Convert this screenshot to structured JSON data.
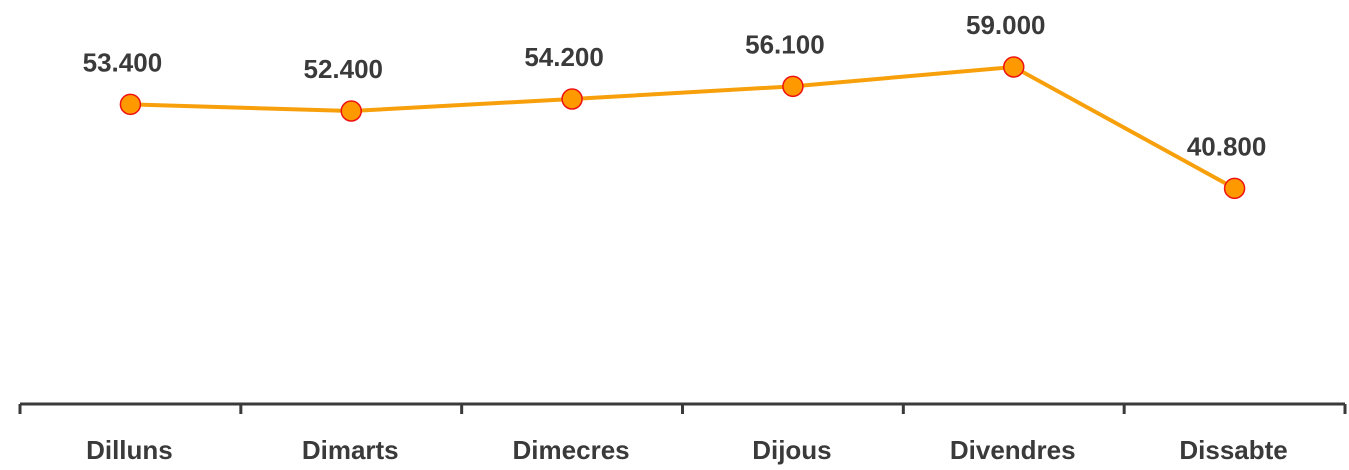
{
  "chart_data": {
    "type": "line",
    "categories": [
      "Dilluns",
      "Dimarts",
      "Dimecres",
      "Dijous",
      "Divendres",
      "Dissabte"
    ],
    "series": [
      {
        "values": [
          53400,
          52400,
          54200,
          56100,
          59000,
          40800
        ],
        "labels": [
          "53.400",
          "52.400",
          "54.200",
          "56.100",
          "59.000",
          "40.800"
        ],
        "color": "#f7a00b",
        "marker_color": "#ff9900",
        "marker_edge_color": "#ee1111"
      }
    ],
    "title": "",
    "xlabel": "",
    "ylabel": "",
    "grid": false,
    "legend": "none",
    "axis_color": "#3a3a3a"
  }
}
